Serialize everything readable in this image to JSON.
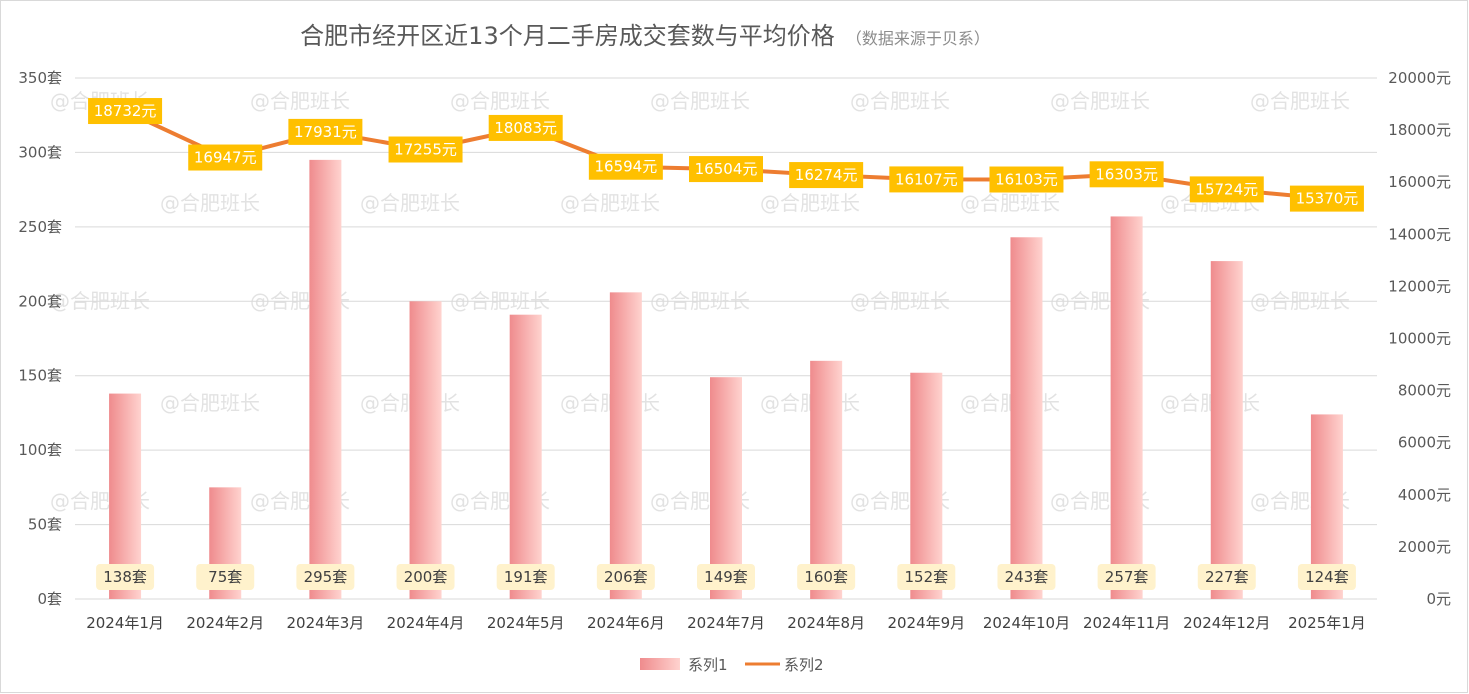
{
  "chart_data": {
    "type": "bar",
    "title": "合肥市经开区近13个月二手房成交套数与平均价格",
    "subtitle": "（数据来源于贝系）",
    "categories": [
      "2024年1月",
      "2024年2月",
      "2024年3月",
      "2024年4月",
      "2024年5月",
      "2024年6月",
      "2024年7月",
      "2024年8月",
      "2024年9月",
      "2024年10月",
      "2024年11月",
      "2024年12月",
      "2025年1月"
    ],
    "series": [
      {
        "name": "系列1",
        "type": "bar",
        "axis": "left",
        "values": [
          138,
          75,
          295,
          200,
          191,
          206,
          149,
          160,
          152,
          243,
          257,
          227,
          124
        ],
        "labels": [
          "138套",
          "75套",
          "295套",
          "200套",
          "191套",
          "206套",
          "149套",
          "160套",
          "152套",
          "243套",
          "257套",
          "227套",
          "124套"
        ]
      },
      {
        "name": "系列2",
        "type": "line",
        "axis": "right",
        "values": [
          18732,
          16947,
          17931,
          17255,
          18083,
          16594,
          16504,
          16274,
          16107,
          16103,
          16303,
          15724,
          15370
        ],
        "labels": [
          "18732元",
          "16947元",
          "17931元",
          "17255元",
          "18083元",
          "16594元",
          "16504元",
          "16274元",
          "16107元",
          "16103元",
          "16303元",
          "15724元",
          "15370元"
        ]
      }
    ],
    "y_left": {
      "range": [
        0,
        350
      ],
      "ticks": [
        "0套",
        "50套",
        "100套",
        "150套",
        "200套",
        "250套",
        "300套",
        "350套"
      ]
    },
    "y_right": {
      "range": [
        0,
        20000
      ],
      "ticks": [
        "0元",
        "2000元",
        "4000元",
        "6000元",
        "8000元",
        "10000元",
        "12000元",
        "14000元",
        "16000元",
        "18000元",
        "20000元"
      ]
    },
    "grid": true,
    "legend": "bottom-center",
    "watermark": "@合肥班长",
    "colors": {
      "bar_light": "#ffd3cf",
      "bar_dark": "#ef8b8d",
      "line": "#ed7d31",
      "line_label_bg": "#ffc000",
      "bar_label_bg": "#fff2cc",
      "grid": "#d9d9d9"
    }
  }
}
